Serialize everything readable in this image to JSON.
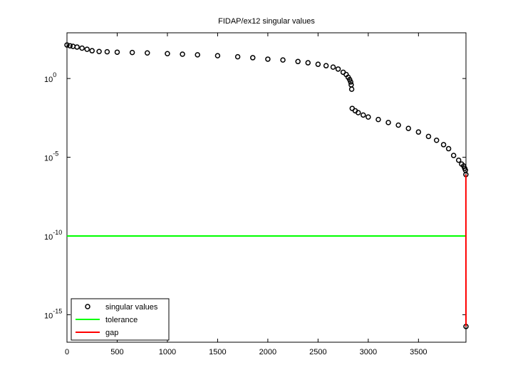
{
  "chart_data": {
    "type": "scatter",
    "title": "FIDAP/ex12 singular values",
    "log_y": true,
    "legend": "lower left",
    "grid": false,
    "xlim": [
      0,
      3973
    ],
    "xticks": [
      0,
      500,
      1000,
      1500,
      2000,
      2500,
      3000,
      3500
    ],
    "ylim": [
      1.8e-17,
      800
    ],
    "yticks": [
      {
        "value": 1,
        "label": "10",
        "exp": "0"
      },
      {
        "value": 1e-05,
        "label": "10",
        "exp": "-5"
      },
      {
        "value": 1e-10,
        "label": "10",
        "exp": "-10"
      },
      {
        "value": 1e-15,
        "label": "10",
        "exp": "-15"
      }
    ],
    "series": [
      {
        "name": "singular values",
        "mode": "markers",
        "color": "#000000",
        "x": [
          0,
          30,
          60,
          100,
          150,
          200,
          250,
          320,
          400,
          500,
          650,
          800,
          1000,
          1150,
          1300,
          1500,
          1700,
          1850,
          2000,
          2150,
          2300,
          2400,
          2500,
          2580,
          2650,
          2700,
          2750,
          2780,
          2800,
          2815,
          2825,
          2830,
          2835,
          2840,
          2870,
          2900,
          2950,
          3000,
          3100,
          3200,
          3300,
          3400,
          3500,
          3600,
          3680,
          3750,
          3800,
          3850,
          3900,
          3930,
          3950,
          3960,
          3968,
          3972,
          3973
        ],
        "values": [
          135,
          120,
          110,
          100,
          85,
          72,
          58,
          52,
          50,
          47,
          45,
          42,
          38,
          35,
          32,
          28,
          24,
          21,
          17,
          15,
          12,
          10,
          8,
          6.5,
          5.3,
          4,
          2.5,
          1.8,
          1.2,
          0.85,
          0.6,
          0.4,
          0.21,
          0.0126,
          0.009,
          0.0068,
          0.0048,
          0.0036,
          0.0025,
          0.0016,
          0.0011,
          0.00068,
          0.0004,
          0.00021,
          0.00012,
          6.3e-05,
          3.5e-05,
          1.3e-05,
          6.5e-06,
          3.7e-06,
          2.8e-06,
          2e-06,
          1.5e-06,
          8e-07,
          1.8e-16
        ]
      },
      {
        "name": "tolerance",
        "mode": "line",
        "color": "#00ff00",
        "x": [
          0,
          3973
        ],
        "values": [
          1e-10,
          1e-10
        ]
      },
      {
        "name": "gap",
        "mode": "line",
        "color": "#ff0000",
        "x": [
          3972,
          3973
        ],
        "values": [
          8e-07,
          1.8e-16
        ]
      }
    ]
  }
}
